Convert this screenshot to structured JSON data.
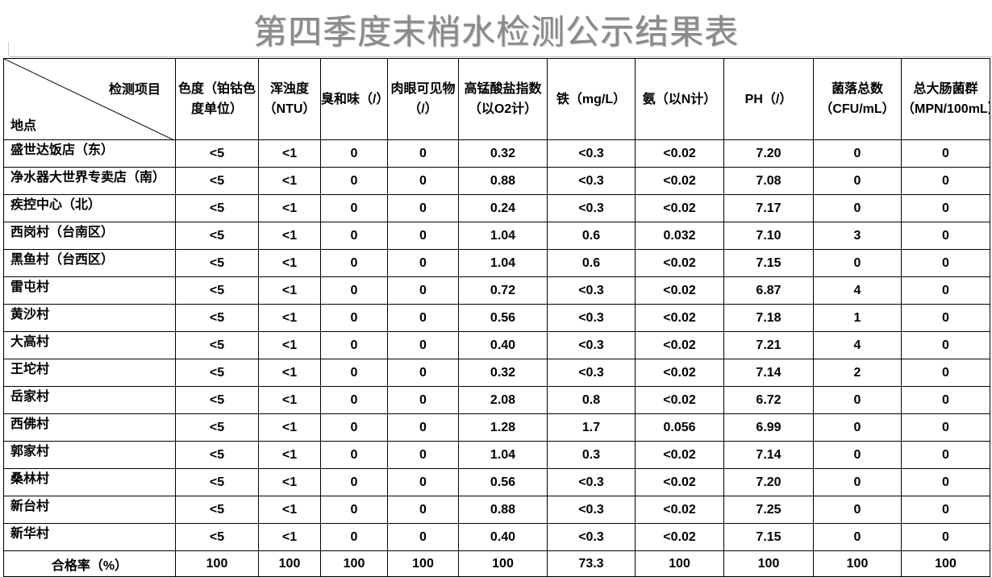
{
  "title": "第四季度末梢水检测公示结果表",
  "header": {
    "corner_item": "检测项目",
    "corner_place": "地点",
    "columns": [
      "色度（铂钴色度单位）",
      "浑浊度（NTU）",
      "臭和味（/）",
      "肉眼可见物（/）",
      "高锰酸盐指数（以O2计）",
      "铁（mg/L）",
      "氨（以N计）",
      "PH（/）",
      "菌落总数（CFU/mL）",
      "总大肠菌群（MPN/100mL）"
    ]
  },
  "rows": [
    {
      "location": "盛世达饭店（东）",
      "values": [
        "<5",
        "<1",
        "0",
        "0",
        "0.32",
        "<0.3",
        "<0.02",
        "7.20",
        "0",
        "0"
      ]
    },
    {
      "location": "净水器大世界专卖店（南）",
      "values": [
        "<5",
        "<1",
        "0",
        "0",
        "0.88",
        "<0.3",
        "<0.02",
        "7.08",
        "0",
        "0"
      ]
    },
    {
      "location": "疾控中心（北）",
      "values": [
        "<5",
        "<1",
        "0",
        "0",
        "0.24",
        "<0.3",
        "<0.02",
        "7.17",
        "0",
        "0"
      ]
    },
    {
      "location": "西岗村（台南区）",
      "values": [
        "<5",
        "<1",
        "0",
        "0",
        "1.04",
        "0.6",
        "0.032",
        "7.10",
        "3",
        "0"
      ]
    },
    {
      "location": "黑鱼村（台西区）",
      "values": [
        "<5",
        "<1",
        "0",
        "0",
        "1.04",
        "0.6",
        "<0.02",
        "7.15",
        "0",
        "0"
      ]
    },
    {
      "location": "雷屯村",
      "values": [
        "<5",
        "<1",
        "0",
        "0",
        "0.72",
        "<0.3",
        "<0.02",
        "6.87",
        "4",
        "0"
      ]
    },
    {
      "location": "黄沙村",
      "values": [
        "<5",
        "<1",
        "0",
        "0",
        "0.56",
        "<0.3",
        "<0.02",
        "7.18",
        "1",
        "0"
      ]
    },
    {
      "location": "大高村",
      "values": [
        "<5",
        "<1",
        "0",
        "0",
        "0.40",
        "<0.3",
        "<0.02",
        "7.21",
        "4",
        "0"
      ]
    },
    {
      "location": "王坨村",
      "values": [
        "<5",
        "<1",
        "0",
        "0",
        "0.32",
        "<0.3",
        "<0.02",
        "7.14",
        "2",
        "0"
      ]
    },
    {
      "location": "岳家村",
      "values": [
        "<5",
        "<1",
        "0",
        "0",
        "2.08",
        "0.8",
        "<0.02",
        "6.72",
        "0",
        "0"
      ]
    },
    {
      "location": "西佛村",
      "values": [
        "<5",
        "<1",
        "0",
        "0",
        "1.28",
        "1.7",
        "0.056",
        "6.99",
        "0",
        "0"
      ]
    },
    {
      "location": "郭家村",
      "values": [
        "<5",
        "<1",
        "0",
        "0",
        "1.04",
        "0.3",
        "<0.02",
        "7.14",
        "0",
        "0"
      ]
    },
    {
      "location": "桑林村",
      "values": [
        "<5",
        "<1",
        "0",
        "0",
        "0.56",
        "<0.3",
        "<0.02",
        "7.20",
        "0",
        "0"
      ]
    },
    {
      "location": "新台村",
      "values": [
        "<5",
        "<1",
        "0",
        "0",
        "0.88",
        "<0.3",
        "<0.02",
        "7.25",
        "0",
        "0"
      ]
    },
    {
      "location": "新华村",
      "values": [
        "<5",
        "<1",
        "0",
        "0",
        "0.40",
        "<0.3",
        "<0.02",
        "7.15",
        "0",
        "0"
      ]
    }
  ],
  "footer": {
    "label": "合格率（%）",
    "values": [
      "100",
      "100",
      "100",
      "100",
      "100",
      "73.3",
      "100",
      "100",
      "100",
      "100"
    ]
  }
}
